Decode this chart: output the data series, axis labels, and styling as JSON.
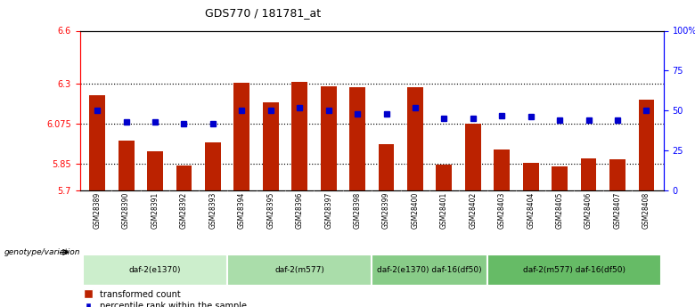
{
  "title": "GDS770 / 181781_at",
  "samples": [
    "GSM28389",
    "GSM28390",
    "GSM28391",
    "GSM28392",
    "GSM28393",
    "GSM28394",
    "GSM28395",
    "GSM28396",
    "GSM28397",
    "GSM28398",
    "GSM28399",
    "GSM28400",
    "GSM28401",
    "GSM28402",
    "GSM28403",
    "GSM28404",
    "GSM28405",
    "GSM28406",
    "GSM28407",
    "GSM28408"
  ],
  "bar_values": [
    6.235,
    5.98,
    5.92,
    5.84,
    5.97,
    6.305,
    6.195,
    6.31,
    6.285,
    6.28,
    5.96,
    6.28,
    5.845,
    6.075,
    5.93,
    5.855,
    5.835,
    5.88,
    5.875,
    6.21
  ],
  "dot_values": [
    50,
    43,
    43,
    42,
    42,
    50,
    50,
    52,
    50,
    48,
    48,
    52,
    45,
    45,
    47,
    46,
    44,
    44,
    44,
    50
  ],
  "ylim_left": [
    5.7,
    6.6
  ],
  "ylim_right": [
    0,
    100
  ],
  "yticks_left": [
    5.7,
    5.85,
    6.075,
    6.3,
    6.6
  ],
  "yticks_right": [
    0,
    25,
    50,
    75,
    100
  ],
  "hlines": [
    5.85,
    6.075,
    6.3
  ],
  "bar_color": "#bb2200",
  "dot_color": "#0000cc",
  "groups": [
    {
      "label": "daf-2(e1370)",
      "start": 0,
      "end": 4
    },
    {
      "label": "daf-2(m577)",
      "start": 5,
      "end": 9
    },
    {
      "label": "daf-2(e1370) daf-16(df50)",
      "start": 10,
      "end": 13
    },
    {
      "label": "daf-2(m577) daf-16(df50)",
      "start": 14,
      "end": 19
    }
  ],
  "group_colors": [
    "#cceecc",
    "#aaddaa",
    "#88cc88",
    "#66bb66"
  ],
  "legend_labels": [
    "transformed count",
    "percentile rank within the sample"
  ],
  "genotype_label": "genotype/variation"
}
